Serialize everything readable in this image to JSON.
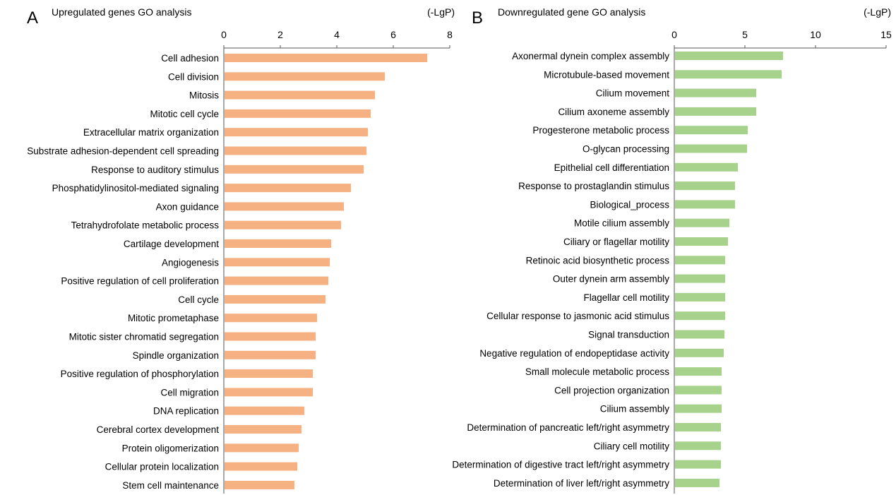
{
  "chart_data": [
    {
      "type": "bar",
      "orientation": "horizontal",
      "panel_letter": "A",
      "title": "Upregulated genes GO analysis",
      "unit_label": "(-LgP)",
      "xlim": [
        0,
        8
      ],
      "x_ticks": [
        0,
        2,
        4,
        6,
        8
      ],
      "bar_color": "#f5b182",
      "categories": [
        "Cell adhesion",
        "Cell division",
        "Mitosis",
        "Mitotic cell cycle",
        "Extracellular matrix organization",
        "Substrate adhesion-dependent cell spreading",
        "Response to auditory stimulus",
        "Phosphatidylinositol-mediated signaling",
        "Axon guidance",
        "Tetrahydrofolate metabolic process",
        "Cartilage development",
        "Angiogenesis",
        "Positive regulation of cell proliferation",
        "Cell cycle",
        "Mitotic prometaphase",
        "Mitotic sister chromatid segregation",
        "Spindle organization",
        "Positive regulation of phosphorylation",
        "Cell migration",
        "DNA replication",
        "Cerebral cortex development",
        "Protein oligomerization",
        "Cellular protein localization",
        "Stem cell maintenance"
      ],
      "values": [
        7.2,
        5.7,
        5.35,
        5.2,
        5.1,
        5.05,
        4.95,
        4.5,
        4.25,
        4.15,
        3.8,
        3.75,
        3.7,
        3.6,
        3.3,
        3.25,
        3.25,
        3.15,
        3.15,
        2.85,
        2.75,
        2.65,
        2.6,
        2.5
      ]
    },
    {
      "type": "bar",
      "orientation": "horizontal",
      "panel_letter": "B",
      "title": "Downregulated gene GO analysis",
      "unit_label": "(-LgP)",
      "xlim": [
        0,
        15
      ],
      "x_ticks": [
        0,
        5,
        10,
        15
      ],
      "bar_color": "#a7d28b",
      "categories": [
        "Axonermal dynein complex assembly",
        "Microtubule-based movement",
        "Cilium movement",
        "Cilium axoneme assembly",
        "Progesterone metabolic process",
        "O-glycan processing",
        "Epithelial cell differentiation",
        "Response to prostaglandin stimulus",
        "Biological_process",
        "Motile cilium assembly",
        "Ciliary or flagellar motility",
        "Retinoic acid biosynthetic process",
        "Outer dynein arm assembly",
        "Flagellar cell motility",
        "Cellular response to jasmonic acid stimulus",
        "Signal transduction",
        "Negative regulation of endopeptidase activity",
        "Small molecule metabolic process",
        "Cell projection organization",
        "Cilium assembly",
        "Determination of pancreatic left/right asymmetry",
        "Ciliary cell motility",
        "Determination of digestive tract left/right asymmetry",
        "Determination of liver left/right asymmetry"
      ],
      "values": [
        7.7,
        7.6,
        5.8,
        5.8,
        5.2,
        5.15,
        4.5,
        4.3,
        4.3,
        3.9,
        3.8,
        3.6,
        3.6,
        3.6,
        3.6,
        3.55,
        3.5,
        3.35,
        3.35,
        3.35,
        3.3,
        3.3,
        3.3,
        3.2
      ]
    }
  ]
}
